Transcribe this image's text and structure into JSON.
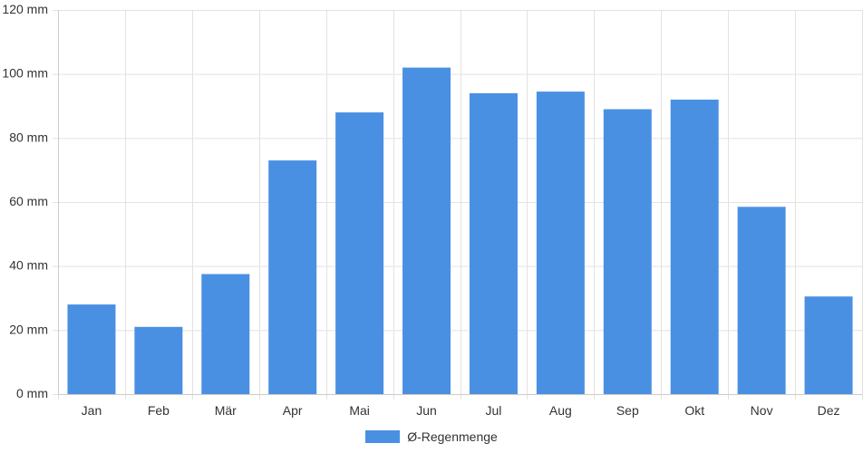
{
  "chart_data": {
    "type": "bar",
    "categories": [
      "Jan",
      "Feb",
      "Mär",
      "Apr",
      "Mai",
      "Jun",
      "Jul",
      "Aug",
      "Sep",
      "Okt",
      "Nov",
      "Dez"
    ],
    "series": [
      {
        "name": "Ø-Regenmenge",
        "values": [
          28,
          21,
          37.5,
          73,
          88,
          102,
          94,
          94.5,
          89,
          92,
          58.5,
          30.5
        ]
      }
    ],
    "ylim": [
      0,
      120
    ],
    "yticks": [
      0,
      20,
      40,
      60,
      80,
      100,
      120
    ],
    "ytick_labels": [
      "0 mm",
      "20 mm",
      "40 mm",
      "60 mm",
      "80 mm",
      "100 mm",
      "120 mm"
    ],
    "grid": true,
    "legend_position": "bottom-center",
    "colors": {
      "bar": "#4a90e2",
      "grid": "#e2e2e2",
      "axis": "#cccccc",
      "text": "#333333"
    }
  },
  "legend": {
    "label": "Ø-Regenmenge"
  }
}
